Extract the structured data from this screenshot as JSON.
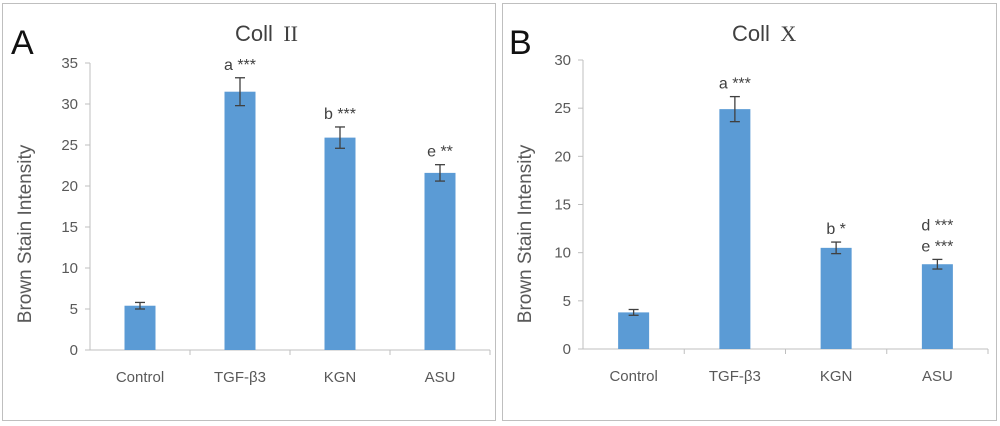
{
  "chart_data": [
    {
      "type": "bar",
      "panel_label": "A",
      "title": "Coll",
      "title_suffix": "II",
      "ylabel": "Brown Stain Intensity",
      "xlabel": "",
      "ylim": [
        0,
        35
      ],
      "yticks": [
        0,
        5,
        10,
        15,
        20,
        25,
        30,
        35
      ],
      "grid": false,
      "categories": [
        "Control",
        "TGF-β3",
        "KGN",
        "ASU"
      ],
      "values": [
        5.4,
        31.5,
        25.9,
        21.6
      ],
      "errors": [
        0.4,
        1.7,
        1.3,
        1.0
      ],
      "annotations": [
        [],
        [
          "a ***"
        ],
        [
          "b ***"
        ],
        [
          "e **"
        ]
      ],
      "bar_color": "#5b9bd5"
    },
    {
      "type": "bar",
      "panel_label": "B",
      "title": "Coll",
      "title_suffix": "X",
      "ylabel": "Brown Stain Intensity",
      "xlabel": "",
      "ylim": [
        0,
        30
      ],
      "yticks": [
        0,
        5,
        10,
        15,
        20,
        25,
        30
      ],
      "grid": false,
      "categories": [
        "Control",
        "TGF-β3",
        "KGN",
        "ASU"
      ],
      "values": [
        3.8,
        24.9,
        10.5,
        8.8
      ],
      "errors": [
        0.3,
        1.3,
        0.6,
        0.5
      ],
      "annotations": [
        [],
        [
          "a ***"
        ],
        [
          "b *"
        ],
        [
          "d ***",
          "e ***"
        ]
      ],
      "bar_color": "#5b9bd5"
    }
  ]
}
